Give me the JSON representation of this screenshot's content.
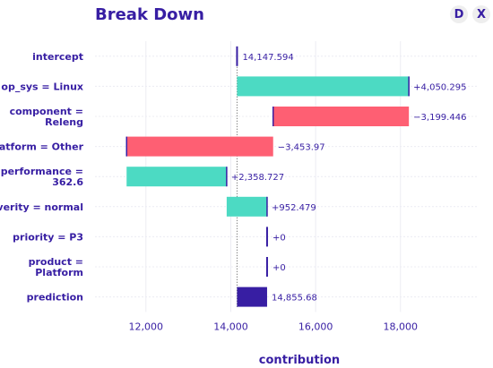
{
  "header": {
    "title": "Break Down",
    "download_label": "D",
    "close_label": "X"
  },
  "chart_data": {
    "type": "bar",
    "subtype": "waterfall",
    "title": "Break Down",
    "xlabel": "contribution",
    "ylabel": "",
    "xlim": [
      10800,
      19800
    ],
    "x_ticks": [
      12000,
      14000,
      16000,
      18000
    ],
    "x_tick_labels": [
      "12,000",
      "14,000",
      "16,000",
      "18,000"
    ],
    "grid": "vertical",
    "colors": {
      "positive": "#4cdac3",
      "negative": "#fe5f73",
      "baseline": "#371ea3",
      "prediction": "#371ea3",
      "text": "#371ea3",
      "grid": "#ececf3"
    },
    "bars": [
      {
        "label": [
          "intercept"
        ],
        "start": 14147.594,
        "end": 14147.594,
        "value_label": "14,147.594",
        "kind": "intercept"
      },
      {
        "label": [
          "op_sys = Linux"
        ],
        "start": 14147.594,
        "end": 18197.889,
        "value_label": "+4,050.295",
        "kind": "positive"
      },
      {
        "label": [
          "component =",
          "Releng"
        ],
        "start": 18197.889,
        "end": 14998.443,
        "value_label": "−3,199.446",
        "kind": "negative"
      },
      {
        "label": [
          "platform = Other"
        ],
        "start": 14998.443,
        "end": 11544.473,
        "value_label": "−3,453.97",
        "kind": "negative"
      },
      {
        "label": [
          "performance =",
          "362.6"
        ],
        "start": 11544.473,
        "end": 13903.2,
        "value_label": "+2,358.727",
        "kind": "positive"
      },
      {
        "label": [
          "severity = normal"
        ],
        "start": 13903.2,
        "end": 14855.679,
        "value_label": "+952.479",
        "kind": "positive"
      },
      {
        "label": [
          "priority = P3"
        ],
        "start": 14855.679,
        "end": 14855.679,
        "value_label": "+0",
        "kind": "zero"
      },
      {
        "label": [
          "product =",
          "Platform"
        ],
        "start": 14855.679,
        "end": 14855.679,
        "value_label": "+0",
        "kind": "zero"
      },
      {
        "label": [
          "prediction"
        ],
        "start": 14147.594,
        "end": 14855.68,
        "value_label": "14,855.68",
        "kind": "prediction"
      }
    ]
  }
}
